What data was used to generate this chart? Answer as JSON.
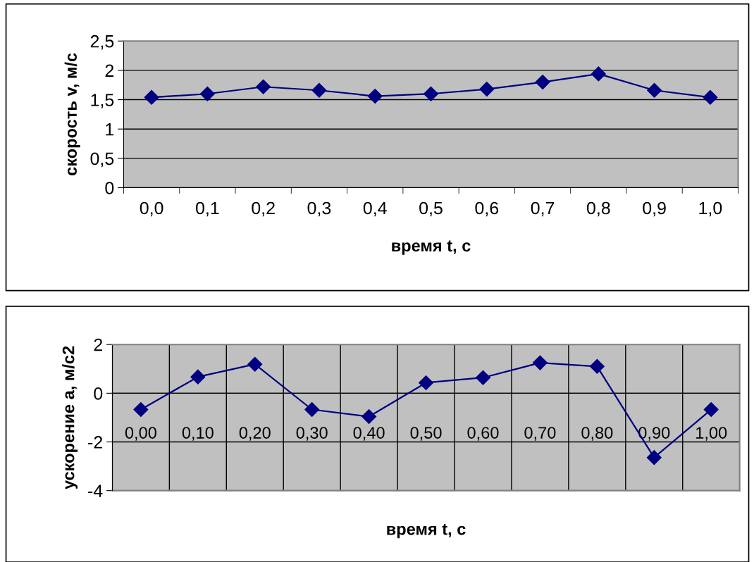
{
  "chart_data": [
    {
      "type": "line",
      "xlabel": "время t, с",
      "ylabel": "скорость v, м/с",
      "categories": [
        "0,0",
        "0,1",
        "0,2",
        "0,3",
        "0,4",
        "0,5",
        "0,6",
        "0,7",
        "0,8",
        "0,9",
        "1,0"
      ],
      "series": [
        {
          "color": "#000080",
          "values": [
            1.54,
            1.6,
            1.72,
            1.66,
            1.56,
            1.6,
            1.68,
            1.8,
            1.94,
            1.66,
            1.54
          ]
        }
      ],
      "ylim": [
        0,
        2.5
      ],
      "yticks": [
        0,
        {
          "value": 0.5,
          "label": "0,5"
        },
        1,
        {
          "value": 1.5,
          "label": "1,5"
        },
        2,
        {
          "value": 2.5,
          "label": "2,5"
        }
      ],
      "grid": "y",
      "marker": "diamond"
    },
    {
      "type": "line",
      "xlabel": "время t, с",
      "ylabel": "ускорение a, м/с2",
      "categories": [
        "0,00",
        "0,10",
        "0,20",
        "0,30",
        "0,40",
        "0,50",
        "0,60",
        "0,70",
        "0,80",
        "0,90",
        "1,00"
      ],
      "series": [
        {
          "color": "#000080",
          "values": [
            -0.67,
            0.67,
            1.19,
            -0.67,
            -0.96,
            0.43,
            0.64,
            1.25,
            1.1,
            -2.64,
            -0.67
          ]
        }
      ],
      "ylim": [
        -4,
        2
      ],
      "yticks": [
        -4,
        -2,
        0,
        2
      ],
      "grid": true,
      "marker": "diamond"
    }
  ]
}
